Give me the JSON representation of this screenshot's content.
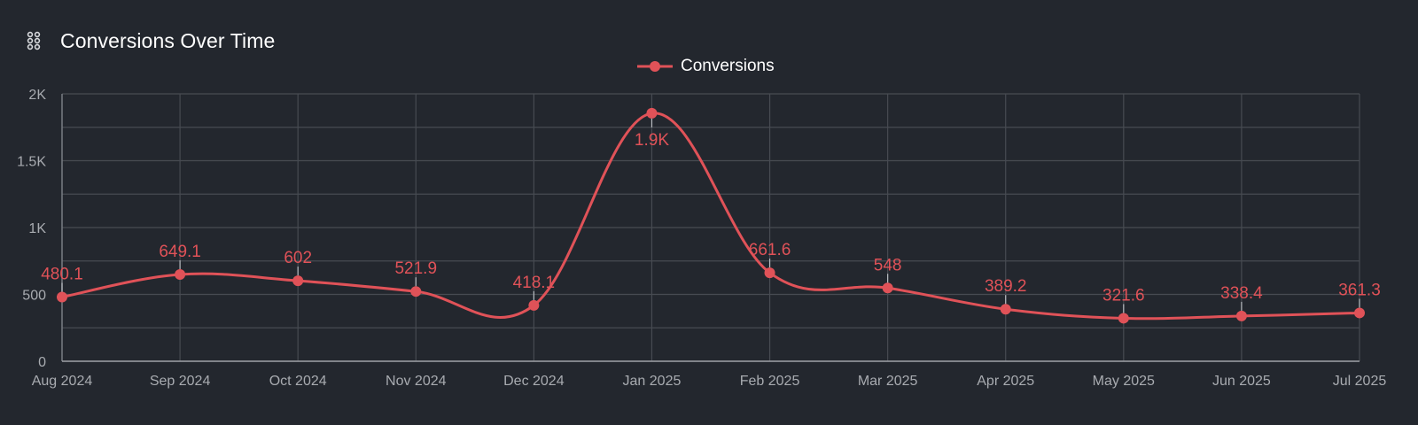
{
  "header": {
    "title": "Conversions Over Time",
    "icon": "drag-handle-icon"
  },
  "colors": {
    "background": "#23272e",
    "series": "#e05258",
    "grid": "#474b52",
    "axis_text": "#a8abb0",
    "title_text": "#ffffff"
  },
  "legend": {
    "label": "Conversions"
  },
  "chart_data": {
    "type": "line",
    "title": "Conversions Over Time",
    "xlabel": "",
    "ylabel": "",
    "categories": [
      "Aug 2024",
      "Sep 2024",
      "Oct 2024",
      "Nov 2024",
      "Dec 2024",
      "Jan 2025",
      "Feb 2025",
      "Mar 2025",
      "Apr 2025",
      "May 2025",
      "Jun 2025",
      "Jul 2025"
    ],
    "series": [
      {
        "name": "Conversions",
        "values": [
          480.1,
          649.1,
          602,
          521.9,
          418.1,
          1855,
          661.6,
          548,
          389.2,
          321.6,
          338.4,
          361.3
        ],
        "labels": [
          "480.1",
          "649.1",
          "602",
          "521.9",
          "418.1",
          "1.9K",
          "661.6",
          "548",
          "389.2",
          "321.6",
          "338.4",
          "361.3"
        ]
      }
    ],
    "ylim": [
      0,
      2000
    ],
    "yticks": [
      0,
      500,
      1000,
      1500,
      2000
    ],
    "ytick_labels": [
      "0",
      "500",
      "1K",
      "1.5K",
      "2K"
    ],
    "grid": true,
    "smooth": true,
    "legend_position": "top-center"
  }
}
